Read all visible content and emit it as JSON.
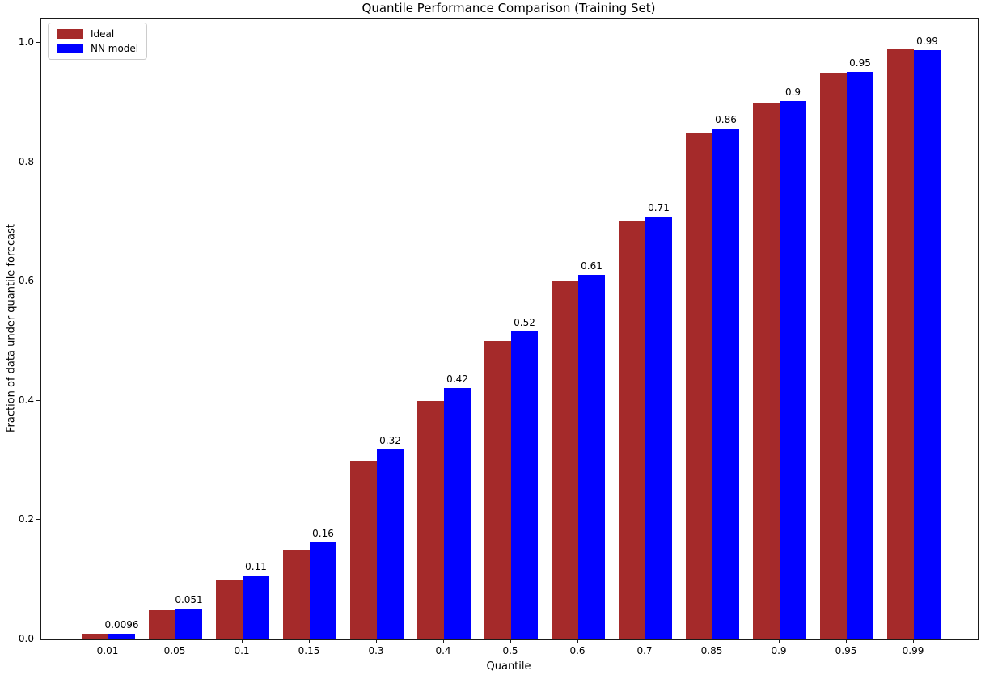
{
  "chart_data": {
    "type": "bar",
    "title": "Quantile Performance Comparison (Training Set)",
    "xlabel": "Quantile",
    "ylabel": "Fraction of data under quantile forecast",
    "categories": [
      "0.01",
      "0.05",
      "0.1",
      "0.15",
      "0.3",
      "0.4",
      "0.5",
      "0.6",
      "0.7",
      "0.85",
      "0.9",
      "0.95",
      "0.99"
    ],
    "series": [
      {
        "name": "Ideal",
        "color": "#A52A2A",
        "values": [
          0.01,
          0.05,
          0.1,
          0.15,
          0.3,
          0.4,
          0.5,
          0.6,
          0.7,
          0.85,
          0.9,
          0.95,
          0.99
        ]
      },
      {
        "name": "NN model",
        "color": "#0000FF",
        "values": [
          0.0096,
          0.051,
          0.107,
          0.163,
          0.318,
          0.422,
          0.516,
          0.611,
          0.709,
          0.857,
          0.903,
          0.951,
          0.988
        ],
        "bar_labels": [
          "0.0096",
          "0.051",
          "0.11",
          "0.16",
          "0.32",
          "0.42",
          "0.52",
          "0.61",
          "0.71",
          "0.86",
          "0.9",
          "0.95",
          "0.99"
        ]
      }
    ],
    "yticks": [
      "0.0",
      "0.2",
      "0.4",
      "0.6",
      "0.8",
      "1.0"
    ],
    "ylim": [
      0.0,
      1.04
    ],
    "grid": false,
    "legend_position": "upper left",
    "axis_color": "#1a1a1a",
    "background_color": "#ffffff"
  }
}
